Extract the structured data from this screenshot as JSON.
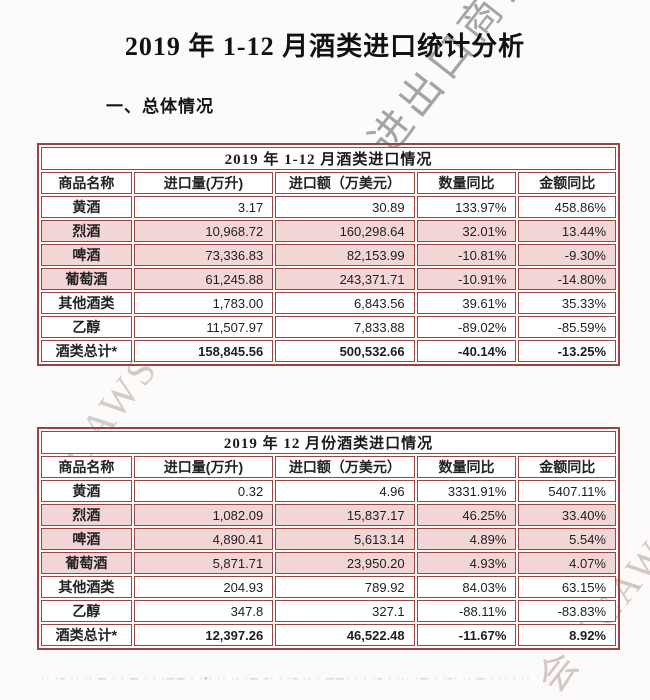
{
  "page": {
    "title": "2019 年 1-12 月酒类进口统计分析",
    "section_heading": "一、总体情况"
  },
  "columns": [
    "商品名称",
    "进口量(万升)",
    "进口额（万美元）",
    "数量同比",
    "金额同比"
  ],
  "tables": [
    {
      "caption": "2019 年 1-12 月酒类进口情况",
      "rows": [
        {
          "name": "黄酒",
          "volume": "3.17",
          "value": "30.89",
          "qty_yoy": "133.97%",
          "amt_yoy": "458.86%",
          "highlight": false,
          "total": false
        },
        {
          "name": "烈酒",
          "volume": "10,968.72",
          "value": "160,298.64",
          "qty_yoy": "32.01%",
          "amt_yoy": "13.44%",
          "highlight": true,
          "total": false
        },
        {
          "name": "啤酒",
          "volume": "73,336.83",
          "value": "82,153.99",
          "qty_yoy": "-10.81%",
          "amt_yoy": "-9.30%",
          "highlight": true,
          "total": false
        },
        {
          "name": "葡萄酒",
          "volume": "61,245.88",
          "value": "243,371.71",
          "qty_yoy": "-10.91%",
          "amt_yoy": "-14.80%",
          "highlight": true,
          "total": false
        },
        {
          "name": "其他酒类",
          "volume": "1,783.00",
          "value": "6,843.56",
          "qty_yoy": "39.61%",
          "amt_yoy": "35.33%",
          "highlight": false,
          "total": false
        },
        {
          "name": "乙醇",
          "volume": "11,507.97",
          "value": "7,833.88",
          "qty_yoy": "-89.02%",
          "amt_yoy": "-85.59%",
          "highlight": false,
          "total": false
        },
        {
          "name": "酒类总计*",
          "volume": "158,845.56",
          "value": "500,532.66",
          "qty_yoy": "-40.14%",
          "amt_yoy": "-13.25%",
          "highlight": false,
          "total": true
        }
      ]
    },
    {
      "caption": "2019 年 12 月份酒类进口情况",
      "rows": [
        {
          "name": "黄酒",
          "volume": "0.32",
          "value": "4.96",
          "qty_yoy": "3331.91%",
          "amt_yoy": "5407.11%",
          "highlight": false,
          "total": false
        },
        {
          "name": "烈酒",
          "volume": "1,082.09",
          "value": "15,837.17",
          "qty_yoy": "46.25%",
          "amt_yoy": "33.40%",
          "highlight": true,
          "total": false
        },
        {
          "name": "啤酒",
          "volume": "4,890.41",
          "value": "5,613.14",
          "qty_yoy": "4.89%",
          "amt_yoy": "5.54%",
          "highlight": true,
          "total": false
        },
        {
          "name": "葡萄酒",
          "volume": "5,871.71",
          "value": "23,950.20",
          "qty_yoy": "4.93%",
          "amt_yoy": "4.07%",
          "highlight": true,
          "total": false
        },
        {
          "name": "其他酒类",
          "volume": "204.93",
          "value": "789.92",
          "qty_yoy": "84.03%",
          "amt_yoy": "63.15%",
          "highlight": false,
          "total": false
        },
        {
          "name": "乙醇",
          "volume": "347.8",
          "value": "327.1",
          "qty_yoy": "-88.11%",
          "amt_yoy": "-83.83%",
          "highlight": false,
          "total": false
        },
        {
          "name": "酒类总计*",
          "volume": "12,397.26",
          "value": "46,522.48",
          "qty_yoy": "-11.67%",
          "amt_yoy": "8.92%",
          "highlight": false,
          "total": true
        }
      ]
    }
  ],
  "watermark": {
    "fragments": [
      "进出口商会",
      "CAWS",
      "会（CAWS）"
    ]
  },
  "footnote_fragments": "·· ·–  ·· ··   — ·  · —   ·  · ·—— · ·•·  ·· ··  ·— –· · ·– ··  · ——·  ·  · ·– ·  ··· ·—  ·  ·–· ··  —  · ·· ·  ··",
  "colors": {
    "table_border": "#9c4444",
    "row_highlight": "#f2d6d6",
    "page_background": "#fcfbfa",
    "watermark_gray": "#6f6f6f"
  }
}
